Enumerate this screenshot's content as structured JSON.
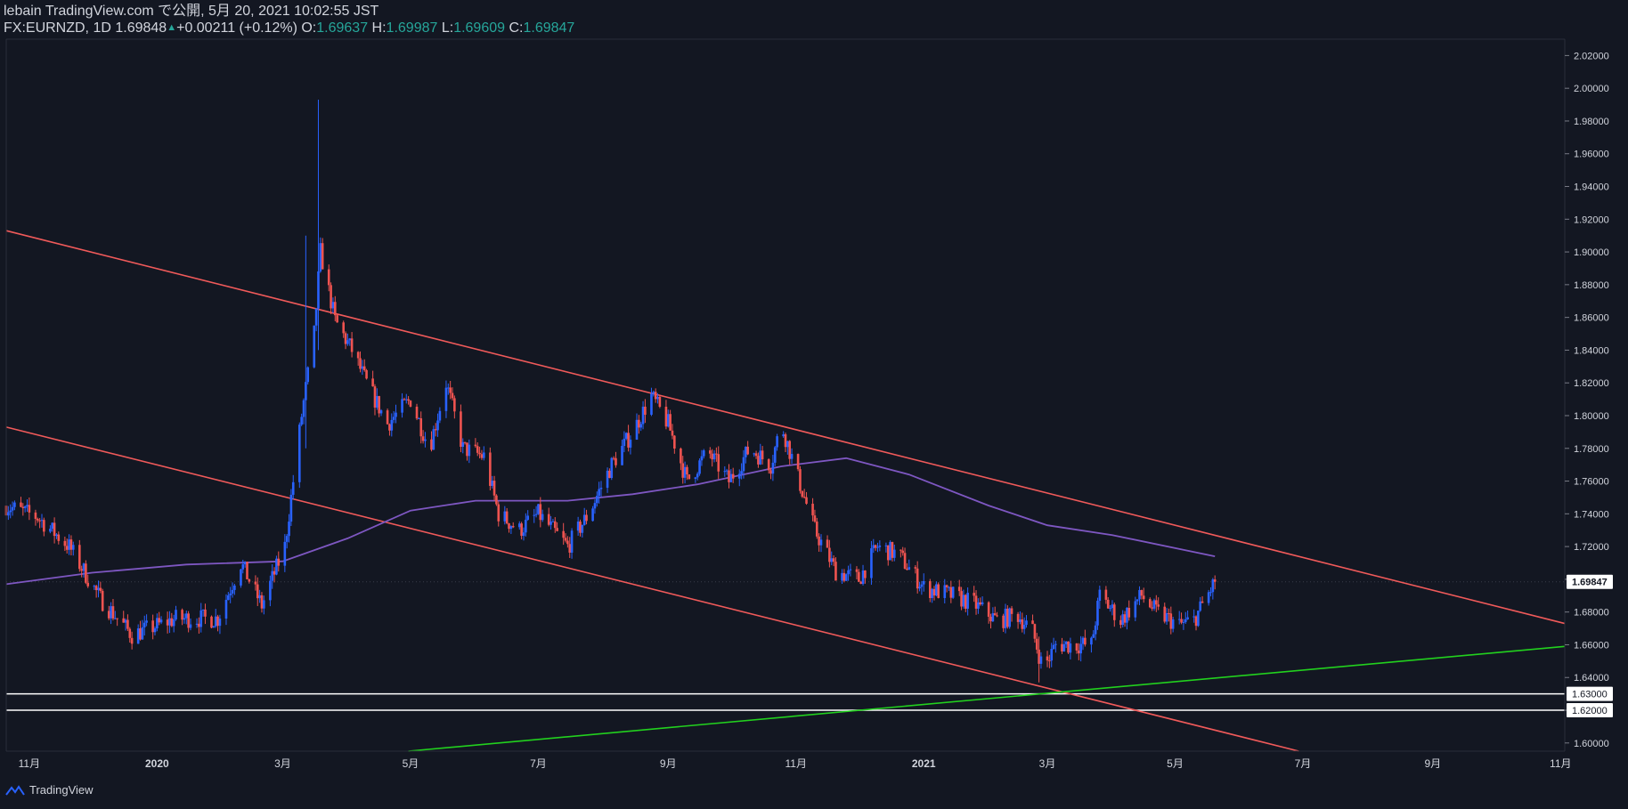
{
  "header": {
    "publish_line": "lebain TradingView.com で公開, 5月 20, 2021 10:02:55 JST",
    "symbol": "FX:EURNZD, 1D",
    "last": "1.69848",
    "change": "+0.00211 (+0.12%)",
    "o_label": "O:",
    "o": "1.69637",
    "h_label": "H:",
    "h": "1.69987",
    "l_label": "L:",
    "l": "1.69609",
    "c_label": "C:",
    "c": "1.69847"
  },
  "footer": {
    "brand": "TradingView"
  },
  "colors": {
    "background": "#131722",
    "up": "#2962ff",
    "down": "#ef5350",
    "ma": "#7e57c2",
    "channel": "#f05a5a",
    "support": "#22d11e",
    "hline": "#ffffff",
    "text": "#d1d4dc",
    "last_label_bg": "#ffffff"
  },
  "chart_data": {
    "type": "candlestick",
    "y_range": [
      1.595,
      2.03
    ],
    "y_ticks": [
      "1.60000",
      "1.62000",
      "1.64000",
      "1.66000",
      "1.68000",
      "1.70000",
      "1.72000",
      "1.74000",
      "1.76000",
      "1.78000",
      "1.80000",
      "1.82000",
      "1.84000",
      "1.86000",
      "1.88000",
      "1.90000",
      "1.92000",
      "1.94000",
      "1.96000",
      "1.98000",
      "2.00000",
      "2.02000"
    ],
    "x_range": [
      "2019-10-21",
      "2021-11-03"
    ],
    "x_ticks": [
      {
        "label": "11月",
        "date": "2019-11-01"
      },
      {
        "label": "2020",
        "date": "2020-01-01"
      },
      {
        "label": "3月",
        "date": "2020-03-01"
      },
      {
        "label": "5月",
        "date": "2020-05-01"
      },
      {
        "label": "7月",
        "date": "2020-07-01"
      },
      {
        "label": "9月",
        "date": "2020-09-01"
      },
      {
        "label": "11月",
        "date": "2020-11-01"
      },
      {
        "label": "2021",
        "date": "2021-01-01"
      },
      {
        "label": "3月",
        "date": "2021-03-01"
      },
      {
        "label": "5月",
        "date": "2021-05-01"
      },
      {
        "label": "7月",
        "date": "2021-07-01"
      },
      {
        "label": "9月",
        "date": "2021-09-01"
      },
      {
        "label": "11月",
        "date": "2021-11-01"
      }
    ],
    "price_path": [
      [
        "2019-10-21",
        1.745
      ],
      [
        "2019-11-05",
        1.738
      ],
      [
        "2019-11-20",
        1.72
      ],
      [
        "2019-12-05",
        1.688
      ],
      [
        "2019-12-20",
        1.666
      ],
      [
        "2020-01-10",
        1.676
      ],
      [
        "2020-01-30",
        1.676
      ],
      [
        "2020-02-10",
        1.71
      ],
      [
        "2020-02-20",
        1.684
      ],
      [
        "2020-03-02",
        1.72
      ],
      [
        "2020-03-10",
        1.8
      ],
      [
        "2020-03-16",
        1.85
      ],
      [
        "2020-03-19",
        1.9
      ],
      [
        "2020-03-26",
        1.858
      ],
      [
        "2020-04-03",
        1.84
      ],
      [
        "2020-04-10",
        1.82
      ],
      [
        "2020-04-20",
        1.795
      ],
      [
        "2020-05-01",
        1.81
      ],
      [
        "2020-05-10",
        1.78
      ],
      [
        "2020-05-18",
        1.82
      ],
      [
        "2020-05-26",
        1.78
      ],
      [
        "2020-06-05",
        1.775
      ],
      [
        "2020-06-12",
        1.74
      ],
      [
        "2020-06-22",
        1.73
      ],
      [
        "2020-07-01",
        1.74
      ],
      [
        "2020-07-15",
        1.72
      ],
      [
        "2020-07-25",
        1.74
      ],
      [
        "2020-08-05",
        1.77
      ],
      [
        "2020-08-15",
        1.79
      ],
      [
        "2020-08-24",
        1.812
      ],
      [
        "2020-09-01",
        1.795
      ],
      [
        "2020-09-10",
        1.76
      ],
      [
        "2020-09-20",
        1.778
      ],
      [
        "2020-09-30",
        1.76
      ],
      [
        "2020-10-10",
        1.78
      ],
      [
        "2020-10-20",
        1.77
      ],
      [
        "2020-10-25",
        1.795
      ],
      [
        "2020-11-02",
        1.762
      ],
      [
        "2020-11-10",
        1.73
      ],
      [
        "2020-11-20",
        1.705
      ],
      [
        "2020-12-01",
        1.7
      ],
      [
        "2020-12-10",
        1.72
      ],
      [
        "2020-12-20",
        1.715
      ],
      [
        "2021-01-01",
        1.695
      ],
      [
        "2021-01-15",
        1.69
      ],
      [
        "2021-01-25",
        1.685
      ],
      [
        "2021-02-05",
        1.675
      ],
      [
        "2021-02-15",
        1.678
      ],
      [
        "2021-02-22",
        1.668
      ],
      [
        "2021-02-27",
        1.645
      ],
      [
        "2021-03-05",
        1.66
      ],
      [
        "2021-03-15",
        1.66
      ],
      [
        "2021-03-22",
        1.66
      ],
      [
        "2021-03-26",
        1.69
      ],
      [
        "2021-04-05",
        1.675
      ],
      [
        "2021-04-15",
        1.69
      ],
      [
        "2021-04-22",
        1.68
      ],
      [
        "2021-05-03",
        1.672
      ],
      [
        "2021-05-10",
        1.675
      ],
      [
        "2021-05-20",
        1.6985
      ]
    ],
    "wick_extremes": [
      {
        "date": "2020-03-18",
        "high": 1.993,
        "low": 1.84
      },
      {
        "date": "2020-03-12",
        "high": 1.91,
        "low": 1.78
      },
      {
        "date": "2021-02-25",
        "high": 1.665,
        "low": 1.637
      }
    ],
    "ma_line": [
      [
        "2019-10-21",
        1.697
      ],
      [
        "2019-12-01",
        1.704
      ],
      [
        "2020-01-15",
        1.709
      ],
      [
        "2020-03-01",
        1.711
      ],
      [
        "2020-04-01",
        1.725
      ],
      [
        "2020-05-01",
        1.742
      ],
      [
        "2020-06-01",
        1.748
      ],
      [
        "2020-07-15",
        1.748
      ],
      [
        "2020-08-15",
        1.752
      ],
      [
        "2020-09-15",
        1.758
      ],
      [
        "2020-10-25",
        1.769
      ],
      [
        "2020-11-25",
        1.774
      ],
      [
        "2020-12-25",
        1.764
      ],
      [
        "2021-02-01",
        1.745
      ],
      [
        "2021-03-01",
        1.733
      ],
      [
        "2021-04-01",
        1.727
      ],
      [
        "2021-05-20",
        1.714
      ]
    ],
    "trendlines": [
      {
        "color_key": "channel",
        "from": [
          "2019-10-21",
          1.913
        ],
        "to": [
          "2021-11-03",
          1.673
        ]
      },
      {
        "color_key": "channel",
        "from": [
          "2019-10-21",
          1.793
        ],
        "to": [
          "2021-06-29",
          1.595
        ]
      },
      {
        "color_key": "support",
        "from": [
          "2020-04-30",
          1.595
        ],
        "to": [
          "2021-11-03",
          1.659
        ]
      }
    ],
    "horizontal_levels": [
      {
        "price": 1.63,
        "label": "1.63000"
      },
      {
        "price": 1.62,
        "label": "1.62000"
      }
    ],
    "last_price": {
      "price": 1.69847,
      "label": "1.69847"
    }
  }
}
